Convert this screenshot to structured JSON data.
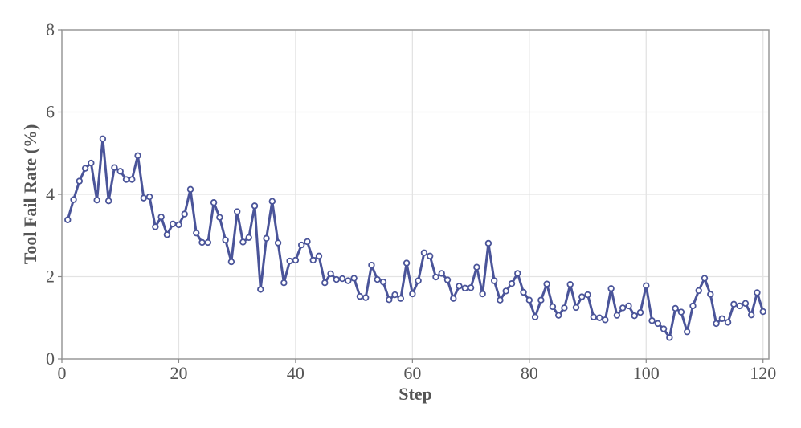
{
  "chart_data": {
    "type": "line",
    "title": "",
    "xlabel": "Step",
    "ylabel": "Tool Fail Rate (%)",
    "xlim": [
      0,
      121
    ],
    "ylim": [
      0,
      8
    ],
    "xticks": [
      0,
      20,
      40,
      60,
      80,
      100,
      120
    ],
    "yticks": [
      0,
      2,
      4,
      6,
      8
    ],
    "grid": true,
    "legend": "none",
    "series": [
      {
        "color": "#4a5499",
        "marker": "circle-open",
        "x": [
          1,
          2,
          3,
          4,
          5,
          6,
          7,
          8,
          9,
          10,
          11,
          12,
          13,
          14,
          15,
          16,
          17,
          18,
          19,
          20,
          21,
          22,
          23,
          24,
          25,
          26,
          27,
          28,
          29,
          30,
          31,
          32,
          33,
          34,
          35,
          36,
          37,
          38,
          39,
          40,
          41,
          42,
          43,
          44,
          45,
          46,
          47,
          48,
          49,
          50,
          51,
          52,
          53,
          54,
          55,
          56,
          57,
          58,
          59,
          60,
          61,
          62,
          63,
          64,
          65,
          66,
          67,
          68,
          69,
          70,
          71,
          72,
          73,
          74,
          75,
          76,
          77,
          78,
          79,
          80,
          81,
          82,
          83,
          84,
          85,
          86,
          87,
          88,
          89,
          90,
          91,
          92,
          93,
          94,
          95,
          96,
          97,
          98,
          99,
          100,
          101,
          102,
          103,
          104,
          105,
          106,
          107,
          108,
          109,
          110,
          111,
          112,
          113,
          114,
          115,
          116,
          117,
          118,
          119,
          120
        ],
        "y": [
          3.38,
          3.87,
          4.32,
          4.63,
          4.76,
          3.86,
          5.35,
          3.84,
          4.65,
          4.56,
          4.36,
          4.36,
          4.94,
          3.91,
          3.94,
          3.21,
          3.45,
          3.02,
          3.28,
          3.26,
          3.52,
          4.12,
          3.06,
          2.83,
          2.83,
          3.8,
          3.44,
          2.89,
          2.36,
          3.58,
          2.84,
          2.95,
          3.72,
          1.69,
          2.93,
          3.83,
          2.82,
          1.85,
          2.38,
          2.4,
          2.77,
          2.85,
          2.4,
          2.5,
          1.85,
          2.07,
          1.93,
          1.95,
          1.9,
          1.96,
          1.52,
          1.49,
          2.28,
          1.93,
          1.87,
          1.44,
          1.56,
          1.47,
          2.33,
          1.58,
          1.9,
          2.58,
          2.5,
          1.99,
          2.08,
          1.92,
          1.47,
          1.77,
          1.72,
          1.73,
          2.23,
          1.58,
          2.81,
          1.9,
          1.43,
          1.65,
          1.83,
          2.08,
          1.62,
          1.43,
          1.02,
          1.43,
          1.82,
          1.27,
          1.06,
          1.24,
          1.81,
          1.25,
          1.51,
          1.56,
          1.02,
          1.0,
          0.95,
          1.71,
          1.06,
          1.24,
          1.29,
          1.05,
          1.13,
          1.78,
          0.93,
          0.86,
          0.73,
          0.52,
          1.23,
          1.14,
          0.66,
          1.29,
          1.66,
          1.96,
          1.57,
          0.86,
          0.98,
          0.89,
          1.33,
          1.29,
          1.35,
          1.07,
          1.61,
          1.15
        ]
      }
    ]
  }
}
